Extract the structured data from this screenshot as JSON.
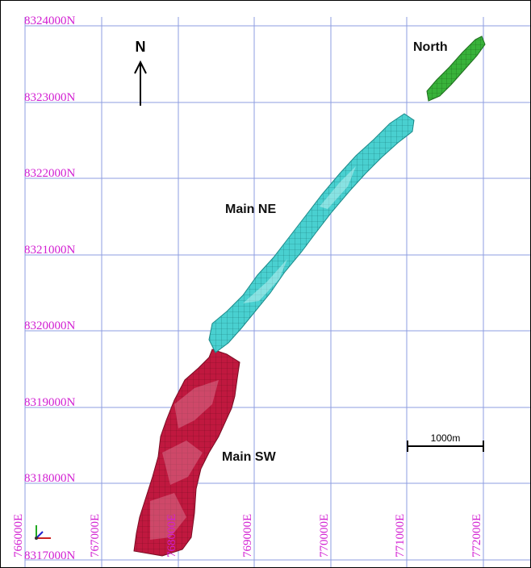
{
  "map": {
    "northing_labels": [
      "8324000N",
      "8323000N",
      "8322000N",
      "8321000N",
      "8320000N",
      "8319000N",
      "8318000N",
      "8317000N"
    ],
    "easting_labels": [
      "766000E",
      "767000E",
      "768000E",
      "769000E",
      "770000E",
      "771000E",
      "772000E"
    ],
    "north_arrow": "N",
    "scale_bar": "1000m",
    "deposits": {
      "north": {
        "label": "North",
        "color": "#3cb43c"
      },
      "main_ne": {
        "label": "Main NE",
        "color": "#4ad6d6"
      },
      "main_sw": {
        "label": "Main SW",
        "color": "#c21845"
      }
    },
    "grid_color": "#8e9ee0",
    "label_color": "#d21fd2"
  }
}
